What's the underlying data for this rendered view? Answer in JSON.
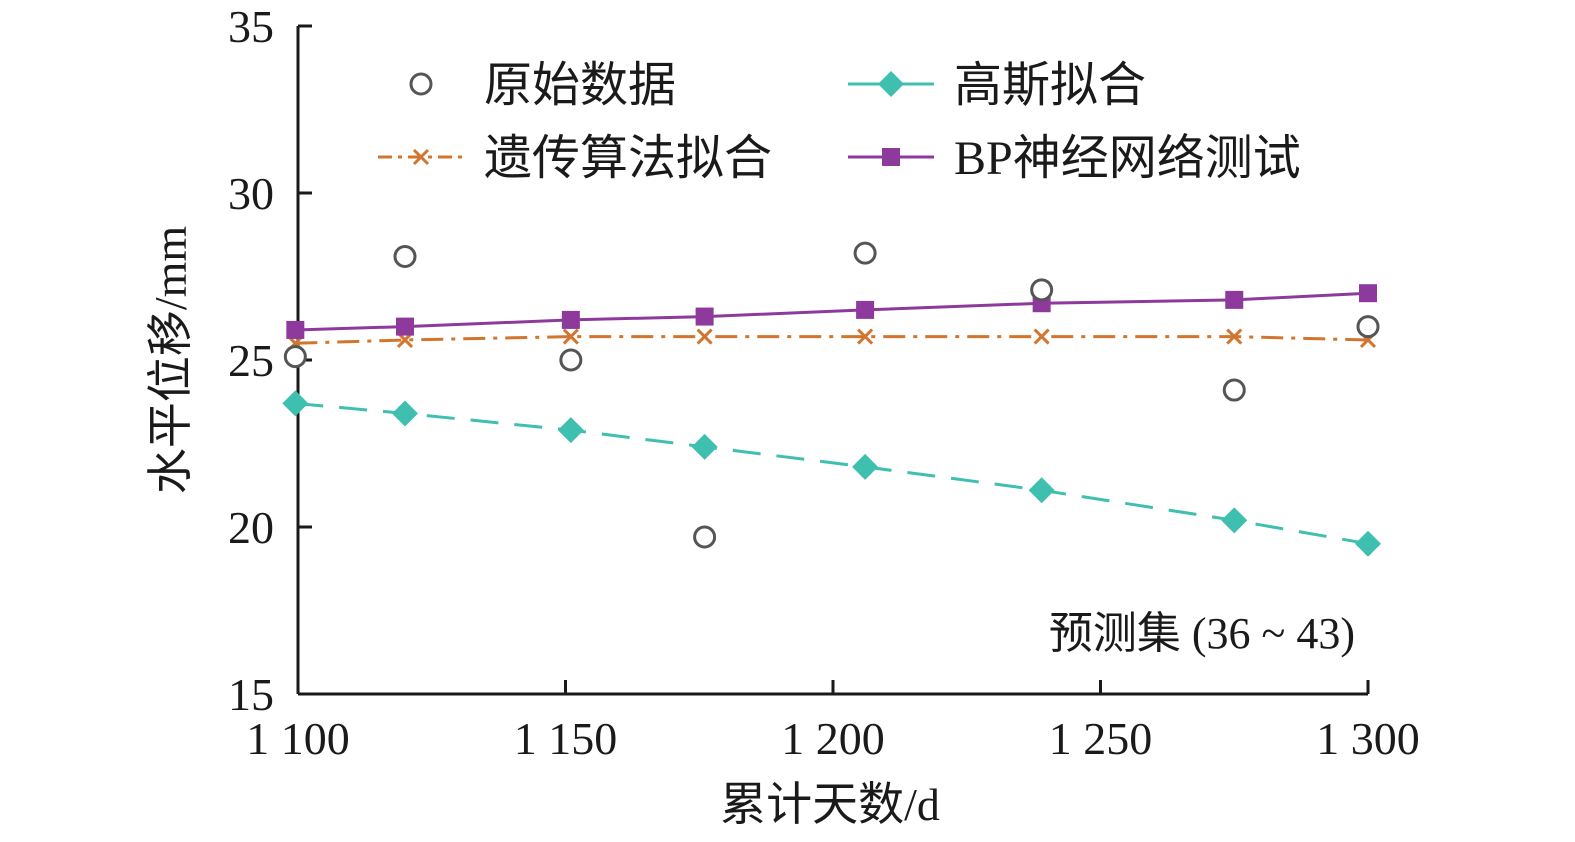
{
  "chart_data": {
    "type": "line",
    "xlabel": "累计天数/d",
    "ylabel": "水平位移/mm",
    "xlim": [
      1100,
      1300
    ],
    "ylim": [
      15,
      35
    ],
    "xticks": [
      1100,
      1150,
      1200,
      1250,
      1300
    ],
    "xtick_labels": [
      "1 100",
      "1 150",
      "1 200",
      "1 250",
      "1 300"
    ],
    "yticks": [
      15,
      20,
      25,
      30,
      35
    ],
    "ytick_labels": [
      "15",
      "20",
      "25",
      "30",
      "35"
    ],
    "grid": false,
    "legend_position": "top",
    "annotation": "预测集 (36 ~ 43)",
    "series": [
      {
        "name": "原始数据",
        "style": "scatter",
        "marker": "circle-open",
        "color": "#555555",
        "points": [
          [
            1099.5,
            25.1
          ],
          [
            1120,
            28.1
          ],
          [
            1151,
            25.0
          ],
          [
            1176,
            19.7
          ],
          [
            1206,
            28.2
          ],
          [
            1239,
            27.1
          ],
          [
            1275,
            24.1
          ],
          [
            1300,
            26.0
          ]
        ]
      },
      {
        "name": "高斯拟合",
        "style": "dashed",
        "marker": "diamond",
        "color": "#3fbfb0",
        "points": [
          [
            1099.5,
            23.7
          ],
          [
            1120,
            23.4
          ],
          [
            1151,
            22.9
          ],
          [
            1176,
            22.4
          ],
          [
            1206,
            21.8
          ],
          [
            1239,
            21.1
          ],
          [
            1275,
            20.2
          ],
          [
            1300,
            19.5
          ]
        ]
      },
      {
        "name": "遗传算法拟合",
        "style": "dashdot",
        "marker": "x",
        "color": "#d2752e",
        "points": [
          [
            1099.5,
            25.5
          ],
          [
            1120,
            25.6
          ],
          [
            1151,
            25.7
          ],
          [
            1176,
            25.7
          ],
          [
            1206,
            25.7
          ],
          [
            1239,
            25.7
          ],
          [
            1275,
            25.7
          ],
          [
            1300,
            25.6
          ]
        ]
      },
      {
        "name": "BP神经网络测试",
        "style": "solid",
        "marker": "square",
        "color": "#8e3a9d",
        "points": [
          [
            1099.5,
            25.9
          ],
          [
            1120,
            26.0
          ],
          [
            1151,
            26.2
          ],
          [
            1176,
            26.3
          ],
          [
            1206,
            26.5
          ],
          [
            1239,
            26.7
          ],
          [
            1275,
            26.8
          ],
          [
            1300,
            27.0
          ]
        ]
      }
    ]
  }
}
